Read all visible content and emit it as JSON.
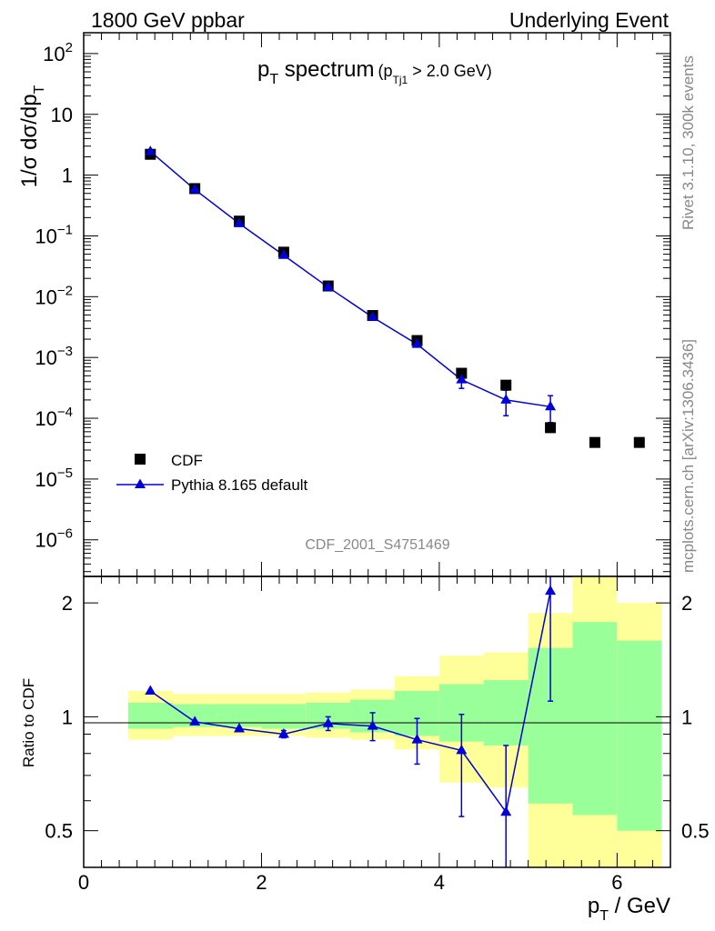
{
  "header": {
    "left": "1800 GeV ppbar",
    "right": "Underlying Event"
  },
  "side": {
    "rivet": "Rivet 3.1.10,  300k events",
    "mcplots": "mcplots.cern.ch [arXiv:1306.3436]"
  },
  "chart_data": [
    {
      "type": "scatter",
      "panel": "main",
      "title_main": "p",
      "title_sub": "T",
      "title_rest": " spectrum",
      "title_cut_pre": "(p",
      "title_cut_sub": "Tj1",
      "title_cut_post": " > 2.0 GeV)",
      "ylabel": "1/σ dσ/dp",
      "ylabel_sub": "T",
      "yscale": "log",
      "ylim": [
        2.5e-07,
        220
      ],
      "xlim": [
        0,
        6.6
      ],
      "ytick_labels": [
        {
          "m": "10",
          "e": "2",
          "v": 100
        },
        {
          "m": "10",
          "e": "",
          "v": 10
        },
        {
          "m": "1",
          "e": "",
          "v": 1
        },
        {
          "m": "10",
          "e": "−1",
          "v": 0.1
        },
        {
          "m": "10",
          "e": "−2",
          "v": 0.01
        },
        {
          "m": "10",
          "e": "−3",
          "v": 0.001
        },
        {
          "m": "10",
          "e": "−4",
          "v": 0.0001
        },
        {
          "m": "10",
          "e": "−5",
          "v": 1e-05
        },
        {
          "m": "10",
          "e": "−6",
          "v": 1e-06
        }
      ],
      "analysis_label": "CDF_2001_S4751469",
      "legend": [
        "CDF",
        "Pythia 8.165 default"
      ],
      "series": [
        {
          "name": "CDF",
          "color": "#000000",
          "marker": "square",
          "x": [
            0.75,
            1.25,
            1.75,
            2.25,
            2.75,
            3.25,
            3.75,
            4.25,
            4.75,
            5.25,
            5.75,
            6.25
          ],
          "y": [
            2.2,
            0.6,
            0.175,
            0.054,
            0.015,
            0.0049,
            0.0019,
            0.00055,
            0.00035,
            7e-05,
            4e-05,
            4e-05
          ]
        },
        {
          "name": "Pythia 8.165 default",
          "color": "#0000dd",
          "marker": "triangle",
          "x": [
            0.75,
            1.25,
            1.75,
            2.25,
            2.75,
            3.25,
            3.75,
            4.25,
            4.75,
            5.25
          ],
          "y": [
            2.45,
            0.58,
            0.16,
            0.048,
            0.0143,
            0.0046,
            0.00165,
            0.00043,
            0.0002,
            0.000155
          ],
          "err_low": [
            0,
            0,
            0,
            0,
            0,
            0,
            0.0001,
            0.00012,
            9e-05,
            7e-05
          ],
          "err_high": [
            0,
            0,
            0,
            0,
            0,
            0,
            0.0001,
            0.00012,
            9e-05,
            8e-05
          ]
        }
      ]
    },
    {
      "type": "line",
      "panel": "ratio",
      "ylabel": "Ratio to CDF",
      "xlabel": "p",
      "xlabel_sub": "T",
      "xlabel_rest": " / GeV",
      "yscale": "log",
      "ylim": [
        0.4,
        2.35
      ],
      "xlim": [
        0,
        6.6
      ],
      "xticks": [
        0,
        2,
        4,
        6
      ],
      "xtick_labels": [
        "0",
        "2",
        "4",
        "6"
      ],
      "yticks": [
        0.5,
        1,
        2
      ],
      "ytick_labels": [
        "0.5",
        "1",
        "2"
      ],
      "bands": {
        "x_edges": [
          0.5,
          1.0,
          1.5,
          2.0,
          2.5,
          3.0,
          3.5,
          4.0,
          4.5,
          5.0,
          5.5,
          6.0,
          6.5
        ],
        "yellow_low": [
          0.87,
          0.89,
          0.89,
          0.89,
          0.88,
          0.87,
          0.82,
          0.67,
          0.65,
          0.35,
          0.35,
          0.35
        ],
        "yellow_high": [
          1.17,
          1.15,
          1.15,
          1.15,
          1.16,
          1.18,
          1.28,
          1.45,
          1.48,
          1.88,
          2.35,
          2.0
        ],
        "green_low": [
          0.93,
          0.94,
          0.94,
          0.93,
          0.93,
          0.91,
          0.89,
          0.86,
          0.84,
          0.59,
          0.55,
          0.5
        ],
        "green_high": [
          1.09,
          1.08,
          1.08,
          1.08,
          1.09,
          1.11,
          1.17,
          1.22,
          1.25,
          1.52,
          1.78,
          1.59
        ],
        "yellow_color": "#ffff99",
        "green_color": "#99ff99"
      },
      "series": [
        {
          "name": "Pythia 8.165 default",
          "color": "#0000dd",
          "x": [
            0.75,
            1.25,
            1.75,
            2.25,
            2.75,
            3.25,
            3.75,
            4.25,
            4.75,
            5.25
          ],
          "y": [
            1.17,
            0.97,
            0.93,
            0.9,
            0.96,
            0.945,
            0.87,
            0.815,
            0.56,
            2.15
          ],
          "err_low": [
            0,
            0,
            0,
            0.02,
            0.04,
            0.08,
            0.12,
            0.27,
            0.3,
            1.05
          ],
          "err_high": [
            0,
            0,
            0,
            0.02,
            0.04,
            0.08,
            0.12,
            0.2,
            0.28,
            0.5
          ]
        }
      ]
    }
  ]
}
